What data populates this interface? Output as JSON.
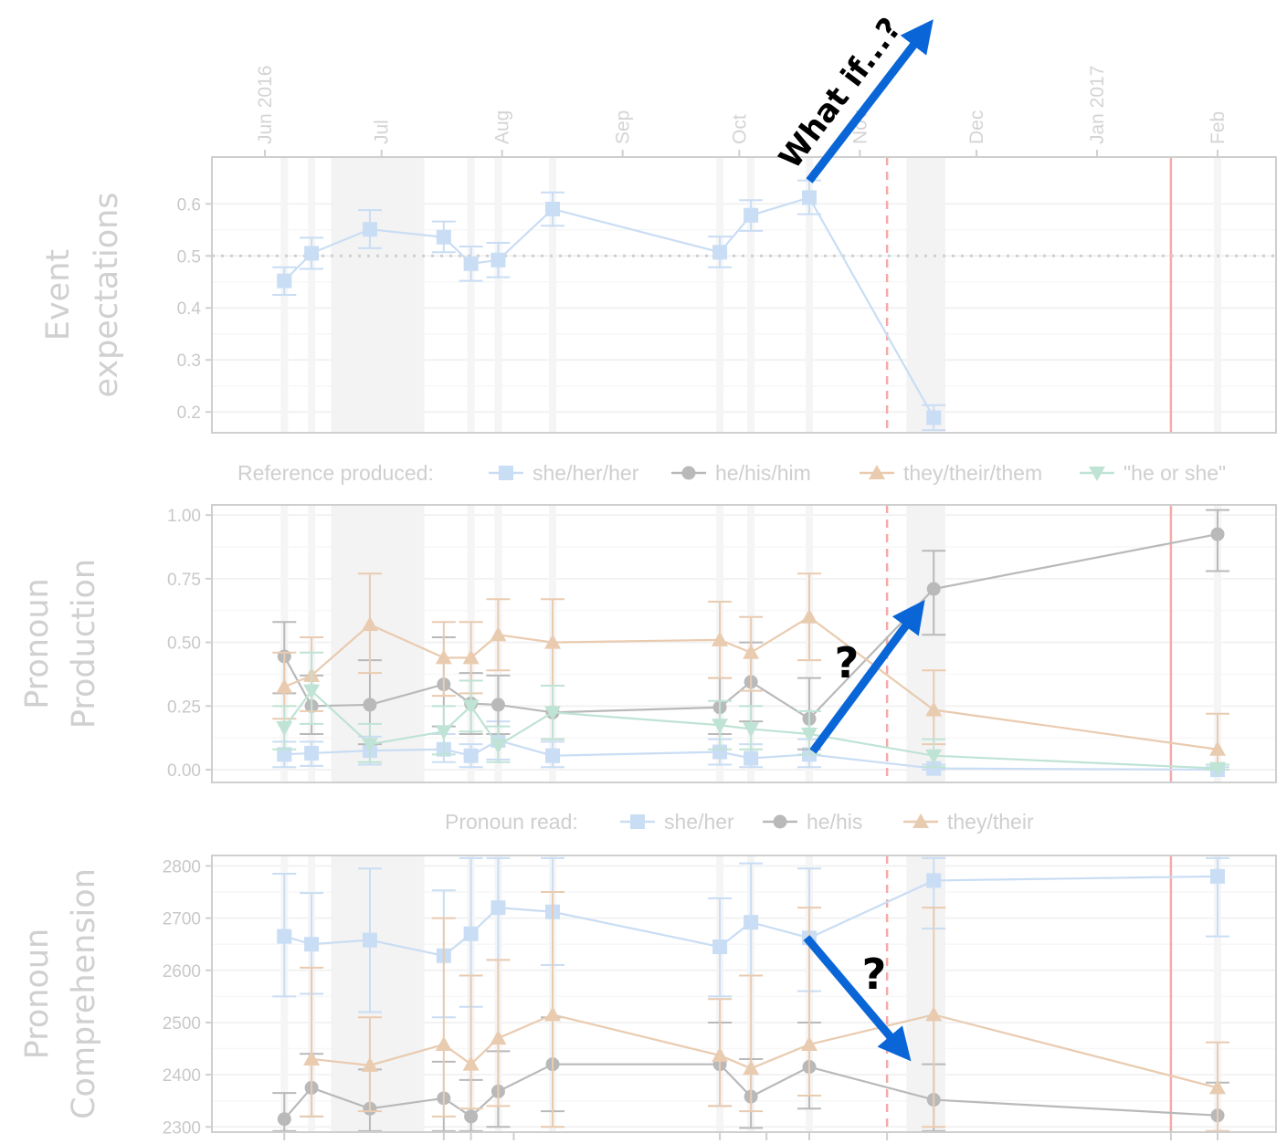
{
  "chart_data": [
    {
      "type": "line",
      "panel": "top",
      "ylabel": [
        "Event",
        "expectations"
      ],
      "ylim": [
        0.16,
        0.69
      ],
      "yticks": [
        0.2,
        0.3,
        0.4,
        0.5,
        0.6
      ],
      "ytick_labels": [
        "0.2",
        "0.3",
        "0.4",
        "0.5",
        "0.6"
      ],
      "reference_line": 0.5,
      "x_axis": "date",
      "x_tick_labels": [
        {
          "date": "2016-06-01",
          "label": "Jun 2016"
        },
        {
          "date": "2016-07-01",
          "label": "Jul"
        },
        {
          "date": "2016-08-01",
          "label": "Aug"
        },
        {
          "date": "2016-09-01",
          "label": "Sep"
        },
        {
          "date": "2016-10-01",
          "label": "Oct"
        },
        {
          "date": "2016-11-01",
          "label": "Nov"
        },
        {
          "date": "2016-12-01",
          "label": "Dec"
        },
        {
          "date": "2017-01-01",
          "label": "Jan 2017"
        },
        {
          "date": "2017-02-01",
          "label": "Feb"
        }
      ],
      "series": [
        {
          "name": "she/her/her",
          "color": "#c9ddf4",
          "marker": "square",
          "points": [
            {
              "x": "2016-06-06",
              "y": 0.452,
              "lo": 0.425,
              "hi": 0.478
            },
            {
              "x": "2016-06-13",
              "y": 0.505,
              "lo": 0.475,
              "hi": 0.535
            },
            {
              "x": "2016-06-28",
              "y": 0.551,
              "lo": 0.515,
              "hi": 0.588
            },
            {
              "x": "2016-07-17",
              "y": 0.536,
              "lo": 0.507,
              "hi": 0.566
            },
            {
              "x": "2016-07-24",
              "y": 0.485,
              "lo": 0.452,
              "hi": 0.518
            },
            {
              "x": "2016-07-31",
              "y": 0.492,
              "lo": 0.459,
              "hi": 0.525
            },
            {
              "x": "2016-08-14",
              "y": 0.59,
              "lo": 0.558,
              "hi": 0.622
            },
            {
              "x": "2016-09-26",
              "y": 0.507,
              "lo": 0.478,
              "hi": 0.537
            },
            {
              "x": "2016-10-04",
              "y": 0.578,
              "lo": 0.548,
              "hi": 0.607
            },
            {
              "x": "2016-10-19",
              "y": 0.612,
              "lo": 0.58,
              "hi": 0.645
            },
            {
              "x": "2016-11-20",
              "y": 0.189,
              "lo": 0.165,
              "hi": 0.213
            }
          ]
        }
      ]
    },
    {
      "type": "line",
      "panel": "middle",
      "ylabel": [
        "Pronoun",
        "Production"
      ],
      "ylim": [
        -0.05,
        1.04
      ],
      "yticks": [
        0.0,
        0.25,
        0.5,
        0.75,
        1.0
      ],
      "ytick_labels": [
        "0.00",
        "0.25",
        "0.50",
        "0.75",
        "1.00"
      ],
      "legend": {
        "title": "Reference produced:",
        "position": "top"
      },
      "series": [
        {
          "name": "she/her/her",
          "color": "#c9ddf4",
          "marker": "square",
          "points": [
            {
              "x": "2016-06-06",
              "y": 0.06,
              "lo": 0.01,
              "hi": 0.11
            },
            {
              "x": "2016-06-13",
              "y": 0.065,
              "lo": 0.015,
              "hi": 0.11
            },
            {
              "x": "2016-06-28",
              "y": 0.075,
              "lo": 0.02,
              "hi": 0.13
            },
            {
              "x": "2016-07-17",
              "y": 0.08,
              "lo": 0.03,
              "hi": 0.14
            },
            {
              "x": "2016-07-24",
              "y": 0.055,
              "lo": 0.01,
              "hi": 0.1
            },
            {
              "x": "2016-07-31",
              "y": 0.115,
              "lo": 0.04,
              "hi": 0.19
            },
            {
              "x": "2016-08-14",
              "y": 0.055,
              "lo": 0.01,
              "hi": 0.11
            },
            {
              "x": "2016-09-26",
              "y": 0.07,
              "lo": 0.02,
              "hi": 0.12
            },
            {
              "x": "2016-10-04",
              "y": 0.045,
              "lo": 0.01,
              "hi": 0.1
            },
            {
              "x": "2016-10-19",
              "y": 0.06,
              "lo": 0.01,
              "hi": 0.12
            },
            {
              "x": "2016-11-20",
              "y": 0.005,
              "lo": 0.0,
              "hi": 0.02
            },
            {
              "x": "2017-02-01",
              "y": 0.0,
              "lo": 0.0,
              "hi": 0.01
            }
          ]
        },
        {
          "name": "he/his/him",
          "color": "#b9b9b9",
          "marker": "circle",
          "points": [
            {
              "x": "2016-06-06",
              "y": 0.445,
              "lo": 0.3,
              "hi": 0.58
            },
            {
              "x": "2016-06-13",
              "y": 0.25,
              "lo": 0.14,
              "hi": 0.37
            },
            {
              "x": "2016-06-28",
              "y": 0.255,
              "lo": 0.1,
              "hi": 0.43
            },
            {
              "x": "2016-07-17",
              "y": 0.335,
              "lo": 0.17,
              "hi": 0.52
            },
            {
              "x": "2016-07-24",
              "y": 0.26,
              "lo": 0.14,
              "hi": 0.38
            },
            {
              "x": "2016-07-31",
              "y": 0.255,
              "lo": 0.14,
              "hi": 0.37
            },
            {
              "x": "2016-08-14",
              "y": 0.225,
              "lo": 0.12,
              "hi": 0.33
            },
            {
              "x": "2016-09-26",
              "y": 0.245,
              "lo": 0.14,
              "hi": 0.36
            },
            {
              "x": "2016-10-04",
              "y": 0.345,
              "lo": 0.19,
              "hi": 0.5
            },
            {
              "x": "2016-10-19",
              "y": 0.2,
              "lo": 0.08,
              "hi": 0.36
            },
            {
              "x": "2016-11-20",
              "y": 0.71,
              "lo": 0.53,
              "hi": 0.86
            },
            {
              "x": "2017-02-01",
              "y": 0.925,
              "lo": 0.78,
              "hi": 1.02
            }
          ]
        },
        {
          "name": "they/their/them",
          "color": "#e9cbb0",
          "marker": "triangle-up",
          "points": [
            {
              "x": "2016-06-06",
              "y": 0.325,
              "lo": 0.2,
              "hi": 0.46
            },
            {
              "x": "2016-06-13",
              "y": 0.37,
              "lo": 0.23,
              "hi": 0.52
            },
            {
              "x": "2016-06-28",
              "y": 0.57,
              "lo": 0.38,
              "hi": 0.77
            },
            {
              "x": "2016-07-17",
              "y": 0.44,
              "lo": 0.29,
              "hi": 0.58
            },
            {
              "x": "2016-07-24",
              "y": 0.44,
              "lo": 0.3,
              "hi": 0.58
            },
            {
              "x": "2016-07-31",
              "y": 0.53,
              "lo": 0.39,
              "hi": 0.67
            },
            {
              "x": "2016-08-14",
              "y": 0.5,
              "lo": 0.33,
              "hi": 0.67
            },
            {
              "x": "2016-09-26",
              "y": 0.51,
              "lo": 0.36,
              "hi": 0.66
            },
            {
              "x": "2016-10-04",
              "y": 0.46,
              "lo": 0.31,
              "hi": 0.6
            },
            {
              "x": "2016-10-19",
              "y": 0.6,
              "lo": 0.43,
              "hi": 0.77
            },
            {
              "x": "2016-11-20",
              "y": 0.235,
              "lo": 0.1,
              "hi": 0.39
            },
            {
              "x": "2017-02-01",
              "y": 0.08,
              "lo": 0.0,
              "hi": 0.22
            }
          ]
        },
        {
          "name": "\"he or she\"",
          "color": "#bfe3d4",
          "marker": "triangle-down",
          "points": [
            {
              "x": "2016-06-06",
              "y": 0.165,
              "lo": 0.08,
              "hi": 0.25
            },
            {
              "x": "2016-06-13",
              "y": 0.31,
              "lo": 0.18,
              "hi": 0.46
            },
            {
              "x": "2016-06-28",
              "y": 0.1,
              "lo": 0.03,
              "hi": 0.18
            },
            {
              "x": "2016-07-17",
              "y": 0.15,
              "lo": 0.06,
              "hi": 0.25
            },
            {
              "x": "2016-07-24",
              "y": 0.25,
              "lo": 0.15,
              "hi": 0.35
            },
            {
              "x": "2016-07-31",
              "y": 0.095,
              "lo": 0.03,
              "hi": 0.17
            },
            {
              "x": "2016-08-14",
              "y": 0.225,
              "lo": 0.12,
              "hi": 0.33
            },
            {
              "x": "2016-09-26",
              "y": 0.175,
              "lo": 0.08,
              "hi": 0.27
            },
            {
              "x": "2016-10-04",
              "y": 0.16,
              "lo": 0.08,
              "hi": 0.25
            },
            {
              "x": "2016-10-19",
              "y": 0.14,
              "lo": 0.06,
              "hi": 0.23
            },
            {
              "x": "2016-11-20",
              "y": 0.055,
              "lo": 0.01,
              "hi": 0.12
            },
            {
              "x": "2017-02-01",
              "y": 0.005,
              "lo": 0.0,
              "hi": 0.02
            }
          ]
        }
      ]
    },
    {
      "type": "line",
      "panel": "bottom",
      "ylabel": [
        "Pronoun",
        "Comprehension"
      ],
      "ylim": [
        2290,
        2820
      ],
      "yticks": [
        2300,
        2400,
        2500,
        2600,
        2700,
        2800
      ],
      "ytick_labels": [
        "2300",
        "2400",
        "2500",
        "2600",
        "2700",
        "2800"
      ],
      "legend": {
        "title": "Pronoun read:",
        "position": "top"
      },
      "series": [
        {
          "name": "she/her",
          "color": "#c9ddf4",
          "marker": "square",
          "points": [
            {
              "x": "2016-06-06",
              "y": 2665,
              "lo": 2550,
              "hi": 2785
            },
            {
              "x": "2016-06-13",
              "y": 2650,
              "lo": 2555,
              "hi": 2748
            },
            {
              "x": "2016-06-28",
              "y": 2658,
              "lo": 2520,
              "hi": 2795
            },
            {
              "x": "2016-07-17",
              "y": 2628,
              "lo": 2510,
              "hi": 2753
            },
            {
              "x": "2016-07-24",
              "y": 2670,
              "lo": 2530,
              "hi": 2815
            },
            {
              "x": "2016-07-31",
              "y": 2720,
              "lo": 2620,
              "hi": 2815
            },
            {
              "x": "2016-08-14",
              "y": 2712,
              "lo": 2610,
              "hi": 2815
            },
            {
              "x": "2016-09-26",
              "y": 2645,
              "lo": 2550,
              "hi": 2738
            },
            {
              "x": "2016-10-04",
              "y": 2692,
              "lo": 2590,
              "hi": 2805
            },
            {
              "x": "2016-10-19",
              "y": 2662,
              "lo": 2560,
              "hi": 2795
            },
            {
              "x": "2016-11-20",
              "y": 2772,
              "lo": 2680,
              "hi": 2815
            },
            {
              "x": "2017-02-01",
              "y": 2780,
              "lo": 2665,
              "hi": 2815
            }
          ]
        },
        {
          "name": "he/his",
          "color": "#b9b9b9",
          "marker": "circle",
          "points": [
            {
              "x": "2016-06-06",
              "y": 2315,
              "lo": 2292,
              "hi": 2365
            },
            {
              "x": "2016-06-13",
              "y": 2375,
              "lo": 2320,
              "hi": 2440
            },
            {
              "x": "2016-06-28",
              "y": 2335,
              "lo": 2292,
              "hi": 2410
            },
            {
              "x": "2016-07-17",
              "y": 2355,
              "lo": 2292,
              "hi": 2425
            },
            {
              "x": "2016-07-24",
              "y": 2320,
              "lo": 2292,
              "hi": 2390
            },
            {
              "x": "2016-07-31",
              "y": 2368,
              "lo": 2300,
              "hi": 2445
            },
            {
              "x": "2016-08-14",
              "y": 2420,
              "lo": 2330,
              "hi": 2510
            },
            {
              "x": "2016-09-26",
              "y": 2420,
              "lo": 2340,
              "hi": 2500
            },
            {
              "x": "2016-10-04",
              "y": 2358,
              "lo": 2298,
              "hi": 2430
            },
            {
              "x": "2016-10-19",
              "y": 2415,
              "lo": 2335,
              "hi": 2500
            },
            {
              "x": "2016-11-20",
              "y": 2352,
              "lo": 2292,
              "hi": 2420
            },
            {
              "x": "2017-02-01",
              "y": 2322,
              "lo": 2292,
              "hi": 2385
            }
          ]
        },
        {
          "name": "they/their",
          "color": "#e9cbb0",
          "marker": "triangle-up",
          "points": [
            {
              "x": "2016-06-13",
              "y": 2430,
              "lo": 2320,
              "hi": 2605
            },
            {
              "x": "2016-06-28",
              "y": 2418,
              "lo": 2330,
              "hi": 2510
            },
            {
              "x": "2016-07-17",
              "y": 2458,
              "lo": 2320,
              "hi": 2700
            },
            {
              "x": "2016-07-24",
              "y": 2420,
              "lo": 2335,
              "hi": 2590
            },
            {
              "x": "2016-07-31",
              "y": 2470,
              "lo": 2340,
              "hi": 2620
            },
            {
              "x": "2016-08-14",
              "y": 2515,
              "lo": 2300,
              "hi": 2750
            },
            {
              "x": "2016-09-26",
              "y": 2437,
              "lo": 2340,
              "hi": 2545
            },
            {
              "x": "2016-10-04",
              "y": 2412,
              "lo": 2330,
              "hi": 2590
            },
            {
              "x": "2016-10-19",
              "y": 2458,
              "lo": 2360,
              "hi": 2720
            },
            {
              "x": "2016-11-20",
              "y": 2515,
              "lo": 2300,
              "hi": 2720
            },
            {
              "x": "2017-02-01",
              "y": 2375,
              "lo": 2292,
              "hi": 2462
            }
          ]
        }
      ]
    }
  ],
  "legends": {
    "middle": {
      "title": "Reference produced:",
      "items": [
        "she/her/her",
        "he/his/him",
        "they/their/them",
        "\"he or she\""
      ]
    },
    "bottom": {
      "title": "Pronoun read:",
      "items": [
        "she/her",
        "he/his",
        "they/their"
      ]
    }
  },
  "annotations": {
    "top_arrow_text": "What if...?",
    "middle_arrow_text": "?",
    "bottom_arrow_text": "?",
    "arrow_color": "#0a66d6"
  },
  "event_markers": {
    "dashed_line_date": "2016-11-08",
    "solid_line_date": "2017-01-20",
    "marker_color": "#f4aaaa",
    "shaded_ranges": [
      {
        "start": "2016-06-18",
        "end": "2016-07-12"
      },
      {
        "start": "2016-11-13",
        "end": "2016-11-23"
      }
    ],
    "thin_bands": [
      "2016-06-06",
      "2016-06-13",
      "2016-07-24",
      "2016-07-31",
      "2016-08-14",
      "2016-09-26",
      "2016-10-04",
      "2016-10-19",
      "2017-02-01"
    ]
  }
}
